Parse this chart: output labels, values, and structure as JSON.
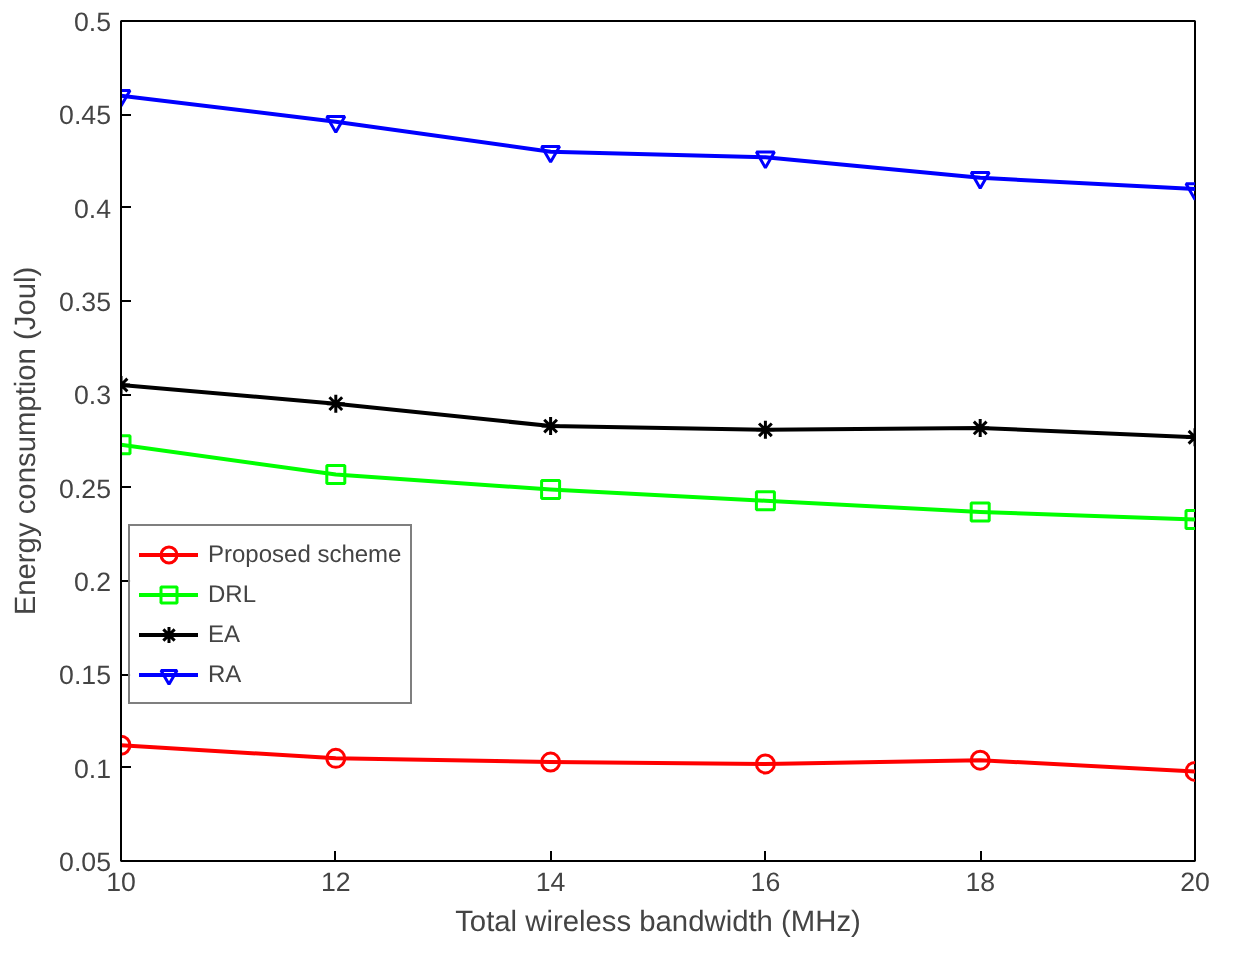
{
  "chart_data": {
    "type": "line",
    "xlabel": "Total wireless bandwidth (MHz)",
    "ylabel": "Energy consumption (Joul)",
    "x": [
      10,
      12,
      14,
      16,
      18,
      20
    ],
    "xlim": [
      10,
      20
    ],
    "xticks": [
      10,
      12,
      14,
      16,
      18,
      20
    ],
    "ylim": [
      0.05,
      0.5
    ],
    "yticks": [
      0.05,
      0.1,
      0.15,
      0.2,
      0.25,
      0.3,
      0.35,
      0.4,
      0.45,
      0.5
    ],
    "grid": false,
    "legend": "left",
    "line_style": "solid",
    "series": [
      {
        "name": "Proposed scheme",
        "color": "#ff0000",
        "marker": "circle",
        "values": [
          0.112,
          0.105,
          0.103,
          0.102,
          0.104,
          0.098
        ]
      },
      {
        "name": "DRL",
        "color": "#00ff00",
        "marker": "square",
        "values": [
          0.273,
          0.257,
          0.249,
          0.243,
          0.237,
          0.233
        ]
      },
      {
        "name": "EA",
        "color": "#000000",
        "marker": "cross",
        "values": [
          0.305,
          0.295,
          0.283,
          0.281,
          0.282,
          0.277
        ]
      },
      {
        "name": "RA",
        "color": "#0000ff",
        "marker": "triangle",
        "values": [
          0.46,
          0.446,
          0.43,
          0.427,
          0.416,
          0.41
        ]
      }
    ]
  }
}
